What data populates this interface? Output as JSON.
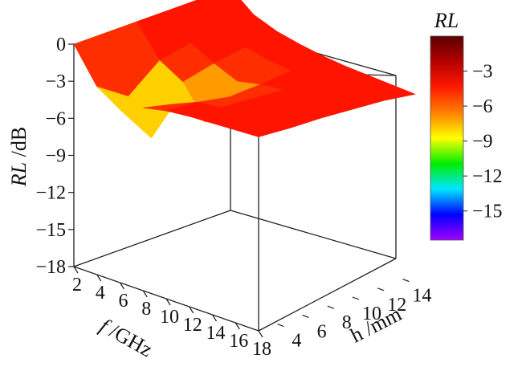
{
  "chart_data": {
    "type": "surface3d",
    "title": "",
    "xlabel": "f /GHz",
    "xlabel_var": "f",
    "xlabel_unit": " /GHz",
    "ylabel": "h /mm",
    "zlabel": "RL /dB",
    "zlabel_var": "RL",
    "zlabel_unit": " /dB",
    "x_ticks": [
      "2",
      "4",
      "6",
      "8",
      "10",
      "12",
      "14",
      "16",
      "18"
    ],
    "y_ticks": [
      "4",
      "6",
      "8",
      "10",
      "12",
      "14"
    ],
    "z_ticks": [
      "0",
      "−3",
      "−6",
      "−9",
      "−12",
      "−15",
      "−18"
    ],
    "xlim": [
      2,
      18
    ],
    "ylim": [
      2.5,
      15
    ],
    "zlim": [
      -18,
      0
    ],
    "colorbar": {
      "title": "RL",
      "ticks": [
        "−3",
        "−6",
        "−9",
        "−12",
        "−15"
      ],
      "tick_values": [
        -3,
        -6,
        -9,
        -12,
        -15
      ],
      "range": [
        -17.5,
        0
      ],
      "colormap": [
        "#5a0000",
        "#b40000",
        "#ff1a00",
        "#ff8000",
        "#ffff00",
        "#00ee00",
        "#00e5ff",
        "#0000ff",
        "#a000ff"
      ]
    },
    "surface": {
      "x_ghz": [
        2,
        4,
        6,
        8,
        10,
        12,
        14,
        16,
        18
      ],
      "h_mm": [
        2.5,
        5,
        7.5,
        10,
        12.5,
        15
      ],
      "rl_db": [
        [
          0,
          -2.8,
          -4.0,
          -3.2,
          -2.8,
          -2.6,
          -2.5,
          -2.4,
          -2.3
        ],
        [
          0,
          -4.5,
          -7.2,
          -3.8,
          -3.0,
          -2.8,
          -2.7,
          -2.6,
          -2.5
        ],
        [
          0,
          -2.5,
          -3.6,
          -6.2,
          -3.5,
          -3.0,
          -2.8,
          -2.7,
          -2.6
        ],
        [
          0,
          -2.0,
          -3.0,
          -3.8,
          -3.4,
          -3.2,
          -3.0,
          -2.9,
          -2.8
        ],
        [
          0,
          -1.8,
          -2.6,
          -3.0,
          -3.2,
          -3.3,
          -3.2,
          -3.1,
          -3.0
        ],
        [
          0,
          -1.5,
          -2.2,
          -2.6,
          -2.9,
          -3.1,
          -3.2,
          -3.3,
          -3.4
        ]
      ]
    },
    "grid": false,
    "legend": "colorbar right"
  }
}
